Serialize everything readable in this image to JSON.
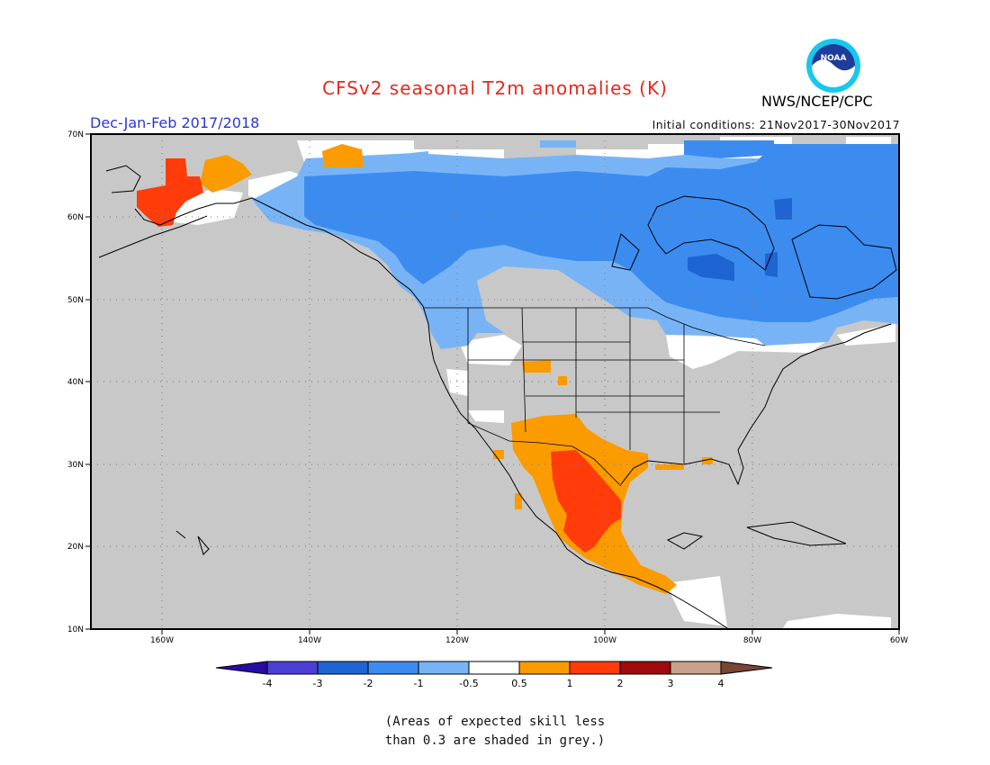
{
  "title": "CFSv2 seasonal T2m anomalies (K)",
  "season": "Dec-Jan-Feb 2017/2018",
  "initial_conditions": "Initial conditions: 21Nov2017-30Nov2017",
  "agency": "NWS/NCEP/CPC",
  "logo_text": "NOAA",
  "map": {
    "lon_labels": [
      "160W",
      "140W",
      "120W",
      "100W",
      "80W",
      "60W"
    ],
    "lat_labels": [
      "70N",
      "60N",
      "50N",
      "40N",
      "30N",
      "20N",
      "10N"
    ],
    "colors": {
      "grey": "#c8c8c8",
      "land_white": "#ffffff",
      "light_blue": "#78b4f5",
      "blue": "#3c8cf0",
      "dark_blue": "#1e64d2",
      "orange": "#fa9b00",
      "red_orange": "#ff3c0a",
      "coast": "#000000"
    }
  },
  "colorbar": {
    "labels": [
      "-4",
      "-3",
      "-2",
      "-1",
      "-0.5",
      "0.5",
      "1",
      "2",
      "3",
      "4"
    ],
    "colors": [
      "#2a0aa6",
      "#4b3fd6",
      "#1e64d2",
      "#3c8cf0",
      "#78b4f5",
      "#ffffff",
      "#fa9b00",
      "#ff3c0a",
      "#a00a0a",
      "#c8a08c",
      "#784632"
    ]
  },
  "note_lines": [
    "(Areas of expected skill less",
    "than 0.3 are shaded in grey.)"
  ]
}
